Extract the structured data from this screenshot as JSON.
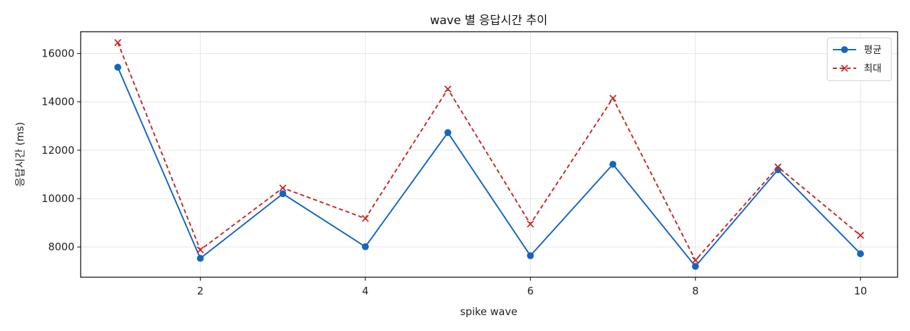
{
  "chart_data": {
    "type": "line",
    "title": "wave 별 응답시간 추이",
    "xlabel": "spike wave",
    "ylabel": "응답시간 (ms)",
    "x": [
      1,
      2,
      3,
      4,
      5,
      6,
      7,
      8,
      9,
      10
    ],
    "xlim": [
      0.55,
      10.45
    ],
    "ylim": [
      6750,
      16900
    ],
    "x_ticks": [
      2,
      4,
      6,
      8,
      10
    ],
    "y_ticks": [
      8000,
      10000,
      12000,
      14000,
      16000
    ],
    "grid": true,
    "legend_position": "top-right",
    "series": [
      {
        "name": "평균",
        "values": [
          15430,
          7530,
          10200,
          8010,
          12730,
          7640,
          11420,
          7200,
          11190,
          7720
        ],
        "color": "#1565c0",
        "line_style": "solid",
        "marker": "circle"
      },
      {
        "name": "최대",
        "values": [
          16450,
          7880,
          10440,
          9180,
          14530,
          8950,
          14150,
          7450,
          11310,
          8480
        ],
        "color": "#c62828",
        "line_style": "dashed",
        "marker": "x"
      }
    ]
  }
}
